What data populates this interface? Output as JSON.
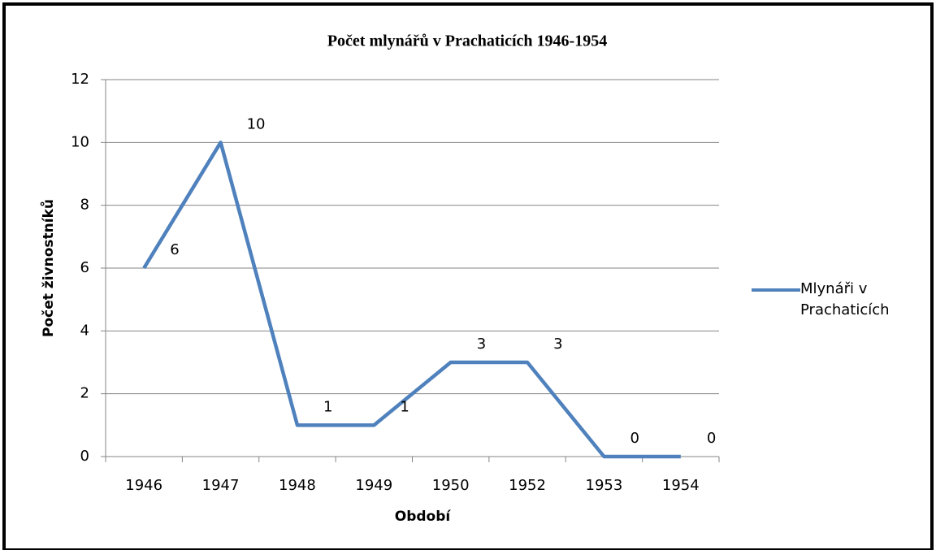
{
  "chart_data": {
    "type": "line",
    "title": "Počet mlynářů v Prachaticích 1946-1954",
    "xlabel": "Období",
    "ylabel": "Počet živnostníků",
    "categories": [
      "1946",
      "1947",
      "1948",
      "1949",
      "1950",
      "1952",
      "1953",
      "1954"
    ],
    "series": [
      {
        "name": "Mlynáři v Prachaticích",
        "color": "#4f81bd",
        "values": [
          6,
          10,
          1,
          1,
          3,
          3,
          0,
          0
        ]
      }
    ],
    "ylim": [
      0,
      12
    ],
    "yticks": [
      0,
      2,
      4,
      6,
      8,
      10,
      12
    ],
    "grid": true,
    "legend": "right",
    "data_labels": true
  }
}
